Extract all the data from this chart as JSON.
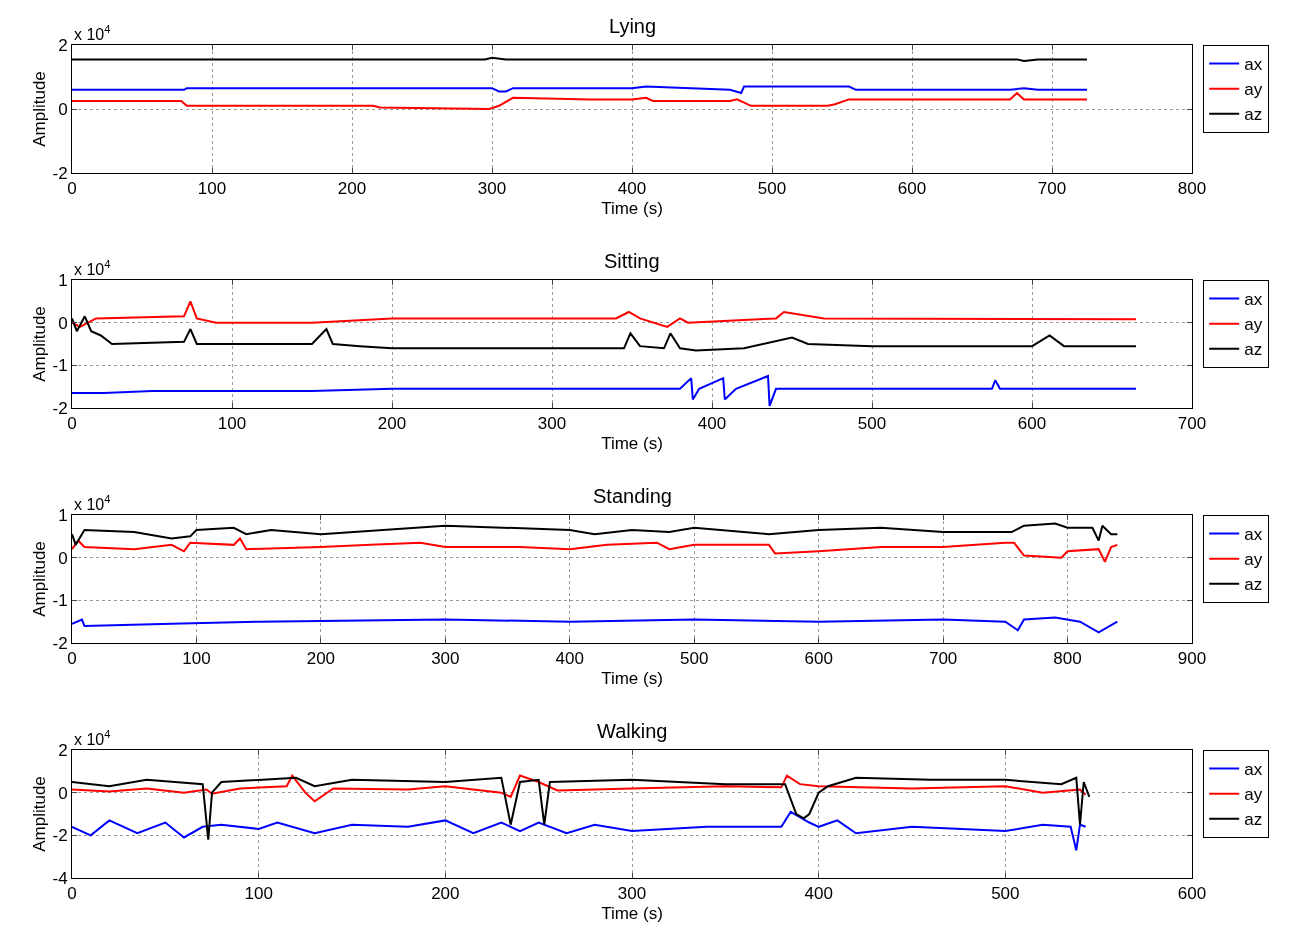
{
  "chart_data": [
    {
      "type": "line",
      "title": "Lying",
      "xlabel": "Time (s)",
      "ylabel": "Amplitude",
      "annotations": [
        "x 10$^{4}$"
      ],
      "xlim": [
        0,
        800
      ],
      "xticks": [
        0,
        100,
        200,
        300,
        400,
        500,
        600,
        700,
        800
      ],
      "ylim": [
        -2,
        2
      ],
      "yticks": [
        -2,
        0,
        2
      ],
      "grid": true,
      "legend": "right",
      "series": [
        {
          "name": "ax",
          "color": "#0000ff",
          "x": [
            0,
            80,
            82,
            300,
            305,
            310,
            315,
            400,
            410,
            470,
            478,
            480,
            555,
            560,
            600,
            670,
            680,
            690,
            725
          ],
          "values": [
            0.6,
            0.6,
            0.65,
            0.65,
            0.55,
            0.55,
            0.65,
            0.65,
            0.7,
            0.6,
            0.5,
            0.7,
            0.7,
            0.6,
            0.6,
            0.6,
            0.65,
            0.6,
            0.6
          ]
        },
        {
          "name": "ay",
          "color": "#ff0000",
          "x": [
            0,
            78,
            82,
            150,
            215,
            220,
            298,
            305,
            315,
            370,
            400,
            410,
            415,
            470,
            475,
            485,
            540,
            545,
            555,
            600,
            670,
            675,
            680,
            725
          ],
          "values": [
            0.25,
            0.25,
            0.1,
            0.1,
            0.1,
            0.05,
            0,
            0.1,
            0.35,
            0.3,
            0.3,
            0.35,
            0.25,
            0.25,
            0.3,
            0.1,
            0.1,
            0.15,
            0.3,
            0.3,
            0.3,
            0.5,
            0.3,
            0.3
          ]
        },
        {
          "name": "az",
          "color": "#000000",
          "x": [
            0,
            100,
            200,
            295,
            300,
            310,
            400,
            500,
            600,
            675,
            680,
            690,
            725
          ],
          "values": [
            1.55,
            1.55,
            1.55,
            1.55,
            1.6,
            1.55,
            1.55,
            1.55,
            1.55,
            1.55,
            1.5,
            1.55,
            1.55
          ]
        }
      ]
    },
    {
      "type": "line",
      "title": "Sitting",
      "xlabel": "Time (s)",
      "ylabel": "Amplitude",
      "annotations": [
        "x 10$^{4}$"
      ],
      "xlim": [
        0,
        700
      ],
      "xticks": [
        0,
        100,
        200,
        300,
        400,
        500,
        600,
        700
      ],
      "ylim": [
        -2,
        1
      ],
      "yticks": [
        -2,
        -1,
        0,
        1
      ],
      "grid": true,
      "legend": "right",
      "series": [
        {
          "name": "ax",
          "color": "#0000ff",
          "x": [
            0,
            20,
            50,
            150,
            200,
            380,
            387,
            388,
            392,
            407,
            408,
            415,
            435,
            436,
            440,
            575,
            577,
            580,
            665
          ],
          "values": [
            -1.65,
            -1.65,
            -1.6,
            -1.6,
            -1.55,
            -1.55,
            -1.3,
            -1.8,
            -1.55,
            -1.3,
            -1.8,
            -1.55,
            -1.25,
            -1.95,
            -1.55,
            -1.55,
            -1.35,
            -1.55,
            -1.55
          ]
        },
        {
          "name": "ay",
          "color": "#ff0000",
          "x": [
            0,
            5,
            15,
            70,
            74,
            78,
            90,
            150,
            200,
            340,
            348,
            355,
            372,
            380,
            385,
            440,
            445,
            470,
            665
          ],
          "values": [
            0,
            -0.1,
            0.1,
            0.15,
            0.5,
            0.1,
            0,
            0,
            0.1,
            0.1,
            0.25,
            0.1,
            -0.1,
            0.1,
            0,
            0.1,
            0.25,
            0.1,
            0.08
          ]
        },
        {
          "name": "az",
          "color": "#000000",
          "x": [
            0,
            3,
            8,
            12,
            18,
            25,
            70,
            74,
            78,
            150,
            159,
            163,
            180,
            200,
            345,
            349,
            355,
            370,
            374,
            380,
            390,
            420,
            450,
            460,
            500,
            600,
            611,
            620,
            665
          ],
          "values": [
            0.1,
            -0.2,
            0.15,
            -0.2,
            -0.3,
            -0.5,
            -0.45,
            -0.15,
            -0.5,
            -0.5,
            -0.15,
            -0.5,
            -0.55,
            -0.6,
            -0.6,
            -0.25,
            -0.55,
            -0.6,
            -0.25,
            -0.6,
            -0.65,
            -0.6,
            -0.35,
            -0.5,
            -0.55,
            -0.55,
            -0.3,
            -0.55,
            -0.55
          ]
        }
      ]
    },
    {
      "type": "line",
      "title": "Standing",
      "xlabel": "Time (s)",
      "ylabel": "Amplitude",
      "annotations": [
        "x 10$^{4}$"
      ],
      "xlim": [
        0,
        900
      ],
      "xticks": [
        0,
        100,
        200,
        300,
        400,
        500,
        600,
        700,
        800,
        900
      ],
      "ylim": [
        -2,
        1
      ],
      "yticks": [
        -2,
        -1,
        0,
        1
      ],
      "grid": true,
      "legend": "right",
      "series": [
        {
          "name": "ax",
          "color": "#0000ff",
          "x": [
            0,
            8,
            10,
            80,
            150,
            300,
            400,
            500,
            600,
            700,
            750,
            760,
            765,
            790,
            810,
            825,
            840
          ],
          "values": [
            -1.55,
            -1.45,
            -1.6,
            -1.55,
            -1.5,
            -1.45,
            -1.5,
            -1.45,
            -1.5,
            -1.45,
            -1.5,
            -1.7,
            -1.45,
            -1.4,
            -1.5,
            -1.75,
            -1.5
          ]
        },
        {
          "name": "ay",
          "color": "#ff0000",
          "x": [
            0,
            5,
            10,
            50,
            80,
            90,
            95,
            130,
            135,
            140,
            200,
            240,
            280,
            300,
            360,
            400,
            430,
            470,
            480,
            500,
            560,
            565,
            600,
            650,
            700,
            750,
            757,
            765,
            795,
            800,
            825,
            830,
            835,
            840
          ],
          "values": [
            0.2,
            0.4,
            0.25,
            0.2,
            0.3,
            0.15,
            0.35,
            0.3,
            0.45,
            0.2,
            0.25,
            0.3,
            0.35,
            0.25,
            0.25,
            0.2,
            0.3,
            0.35,
            0.2,
            0.3,
            0.3,
            0.1,
            0.15,
            0.25,
            0.25,
            0.35,
            0.35,
            0.05,
            0,
            0.15,
            0.2,
            -0.1,
            0.25,
            0.3
          ]
        },
        {
          "name": "az",
          "color": "#000000",
          "x": [
            0,
            3,
            10,
            50,
            80,
            95,
            100,
            130,
            140,
            160,
            200,
            250,
            300,
            400,
            420,
            450,
            480,
            500,
            560,
            600,
            650,
            700,
            755,
            765,
            790,
            800,
            820,
            825,
            828,
            835,
            840
          ],
          "values": [
            0.55,
            0.3,
            0.65,
            0.6,
            0.45,
            0.5,
            0.65,
            0.7,
            0.55,
            0.65,
            0.55,
            0.65,
            0.75,
            0.65,
            0.55,
            0.65,
            0.6,
            0.7,
            0.55,
            0.65,
            0.7,
            0.6,
            0.6,
            0.75,
            0.8,
            0.7,
            0.7,
            0.4,
            0.75,
            0.55,
            0.55
          ]
        }
      ]
    },
    {
      "type": "line",
      "title": "Walking",
      "xlabel": "Time (s)",
      "ylabel": "Amplitude",
      "annotations": [
        "x 10$^{4}$"
      ],
      "xlim": [
        0,
        600
      ],
      "xticks": [
        0,
        100,
        200,
        300,
        400,
        500,
        600
      ],
      "ylim": [
        -4,
        2
      ],
      "yticks": [
        -4,
        -2,
        0,
        2
      ],
      "grid": true,
      "legend": "right",
      "series": [
        {
          "name": "ax",
          "color": "#0000ff",
          "x": [
            0,
            10,
            20,
            35,
            50,
            60,
            70,
            80,
            100,
            110,
            130,
            150,
            180,
            200,
            215,
            230,
            240,
            250,
            265,
            280,
            300,
            340,
            380,
            385,
            395,
            400,
            410,
            420,
            450,
            500,
            520,
            535,
            538,
            540,
            543
          ],
          "values": [
            -1.6,
            -2,
            -1.3,
            -1.9,
            -1.4,
            -2.1,
            -1.6,
            -1.5,
            -1.7,
            -1.4,
            -1.9,
            -1.5,
            -1.6,
            -1.3,
            -1.9,
            -1.4,
            -1.8,
            -1.4,
            -1.9,
            -1.5,
            -1.8,
            -1.6,
            -1.6,
            -0.9,
            -1.4,
            -1.6,
            -1.3,
            -1.9,
            -1.6,
            -1.8,
            -1.5,
            -1.6,
            -2.7,
            -1.5,
            -1.6
          ]
        },
        {
          "name": "ay",
          "color": "#ff0000",
          "x": [
            0,
            20,
            40,
            60,
            72,
            75,
            90,
            115,
            118,
            125,
            130,
            140,
            180,
            200,
            230,
            235,
            240,
            250,
            260,
            300,
            350,
            380,
            383,
            390,
            400,
            450,
            500,
            520,
            540,
            543
          ],
          "values": [
            0.15,
            0.05,
            0.2,
            0,
            0.15,
            -0.05,
            0.2,
            0.3,
            0.8,
            0,
            -0.4,
            0.2,
            0.15,
            0.3,
            0,
            -0.2,
            0.8,
            0.5,
            0.1,
            0.2,
            0.3,
            0.25,
            0.8,
            0.4,
            0.3,
            0.2,
            0.3,
            0,
            0.15,
            -0.1
          ]
        },
        {
          "name": "az",
          "color": "#000000",
          "x": [
            0,
            20,
            40,
            70,
            73,
            75,
            80,
            120,
            130,
            150,
            200,
            230,
            235,
            240,
            250,
            253,
            256,
            300,
            350,
            382,
            388,
            392,
            395,
            400,
            405,
            420,
            460,
            500,
            530,
            538,
            540,
            542,
            545
          ],
          "values": [
            0.5,
            0.3,
            0.6,
            0.4,
            -2.2,
            0,
            0.5,
            0.7,
            0.3,
            0.6,
            0.5,
            0.7,
            -1.5,
            0.5,
            0.6,
            -1.5,
            0.5,
            0.6,
            0.4,
            0.4,
            -1,
            -1.2,
            -1,
            0,
            0.3,
            0.7,
            0.6,
            0.6,
            0.4,
            0.7,
            -1.5,
            0.5,
            -0.2
          ]
        }
      ]
    }
  ]
}
